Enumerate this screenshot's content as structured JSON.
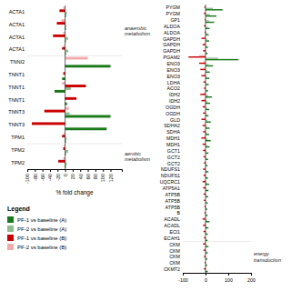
{
  "chart_data": [
    {
      "type": "bar",
      "orientation": "horizontal",
      "xlabel": "% fold change",
      "categories": [
        "ACTA1",
        "ACTA1",
        "ACTA1",
        "ACTA1",
        "TNNI2",
        "TNNT1",
        "TNNT1",
        "TNNT1",
        "TNNT3",
        "TNNT3",
        "TPM1",
        "TPM2",
        "TPM2"
      ],
      "series": [
        {
          "name": "PF-1 vs baseline (A)",
          "color": "#1a7a1a",
          "values": [
            2,
            2,
            2,
            2,
            120,
            -8,
            -28,
            5,
            120,
            110,
            2,
            2,
            2
          ]
        },
        {
          "name": "PF-2 vs baseline (A)",
          "color": "#8fbc8f",
          "values": [
            5,
            3,
            8,
            8,
            0,
            0,
            15,
            0,
            12,
            0,
            4,
            8,
            5
          ]
        },
        {
          "name": "PF-1 vs baseline (B)",
          "color": "#cc0000",
          "values": [
            -15,
            -22,
            -32,
            -8,
            0,
            -5,
            55,
            30,
            -55,
            -88,
            -8,
            -5,
            -18
          ]
        },
        {
          "name": "PF-2 vs baseline (B)",
          "color": "#f4aaaa",
          "values": [
            -5,
            -10,
            -5,
            -3,
            60,
            0,
            -8,
            0,
            10,
            0,
            -3,
            -3,
            -5
          ]
        }
      ],
      "xlim": [
        -100,
        150
      ],
      "xticks": [
        -100,
        -80,
        -60,
        -40,
        -20,
        0,
        20,
        40,
        60,
        80,
        100,
        120
      ],
      "grid": false,
      "annotations": [
        "anaerobic\nmetabolism",
        "aerobic\nmetabolism",
        "Legend"
      ]
    },
    {
      "type": "bar",
      "orientation": "horizontal",
      "categories": [
        "PYGM",
        "PYGM",
        "GP1",
        "ALDOA",
        "ALDOA",
        "GAPDH",
        "GAPDH",
        "GAPDH",
        "PGAM2",
        "ENO3",
        "ENO3",
        "ENO3",
        "LDHA",
        "ACO2",
        "IDH2",
        "IDH2",
        "OGDH",
        "OGDH",
        "GLD",
        "SDHA2",
        "SDHA",
        "MDH1",
        "MDH1",
        "GCT1",
        "GCT2",
        "GCT2",
        "NDUFS1",
        "NDUFS1",
        "UQCRC1",
        "ATP5A1",
        "ATP5B",
        "ATP5B",
        "ATP5B",
        "B",
        "ACADL",
        "ACADL",
        "ECl1",
        "ECAH1",
        "CKM",
        "CKM",
        "CKM",
        "CKM",
        "CKMT2"
      ],
      "series": [
        {
          "name": "PF-1 vs baseline (A)",
          "color": "#1a7a1a",
          "values": [
            75,
            48,
            38,
            18,
            14,
            16,
            11,
            9,
            145,
            33,
            19,
            17,
            14,
            11,
            28,
            20,
            16,
            13,
            23,
            18,
            16,
            23,
            18,
            13,
            11,
            9,
            13,
            11,
            16,
            13,
            12,
            10,
            8,
            9,
            18,
            13,
            10,
            9,
            13,
            10,
            8,
            7,
            10
          ]
        },
        {
          "name": "PF-2 vs baseline (A)",
          "color": "#8fbc8f",
          "values": [
            32,
            20,
            16,
            9,
            7,
            7,
            4,
            3,
            55,
            14,
            7,
            6,
            5,
            4,
            11,
            9,
            7,
            5,
            9,
            7,
            6,
            9,
            7,
            5,
            4,
            3,
            5,
            4,
            6,
            5,
            4,
            4,
            3,
            3,
            7,
            5,
            4,
            3,
            5,
            4,
            3,
            2,
            4
          ]
        },
        {
          "name": "PF-1 vs baseline (B)",
          "color": "#cc0000",
          "values": [
            -5,
            -7,
            -4,
            -7,
            -4,
            -18,
            -13,
            -11,
            -75,
            -28,
            -23,
            -18,
            -9,
            -7,
            -23,
            -18,
            -13,
            -11,
            -18,
            -13,
            -11,
            -18,
            -13,
            -11,
            -9,
            -7,
            -11,
            -9,
            -13,
            -11,
            -9,
            -7,
            -5,
            -5,
            -13,
            -11,
            -9,
            -7,
            -11,
            -9,
            -7,
            -4,
            -7
          ]
        },
        {
          "name": "PF-2 vs baseline (B)",
          "color": "#f4aaaa",
          "values": [
            -2,
            -2,
            -1,
            -2,
            -1,
            -7,
            -5,
            -4,
            -27,
            -11,
            -9,
            -7,
            -3,
            -2,
            -9,
            -7,
            -5,
            -4,
            -7,
            -5,
            -4,
            -7,
            -5,
            -4,
            -3,
            -2,
            -4,
            -3,
            -5,
            -4,
            -3,
            -2,
            -1,
            -1,
            -5,
            -4,
            -3,
            -2,
            -4,
            -3,
            -2,
            -1,
            -2
          ]
        }
      ],
      "xlim": [
        -100,
        200
      ],
      "xticks": [
        -100,
        0,
        100,
        200
      ],
      "grid": false,
      "annotations": [
        "energy\ntransduction"
      ]
    }
  ]
}
